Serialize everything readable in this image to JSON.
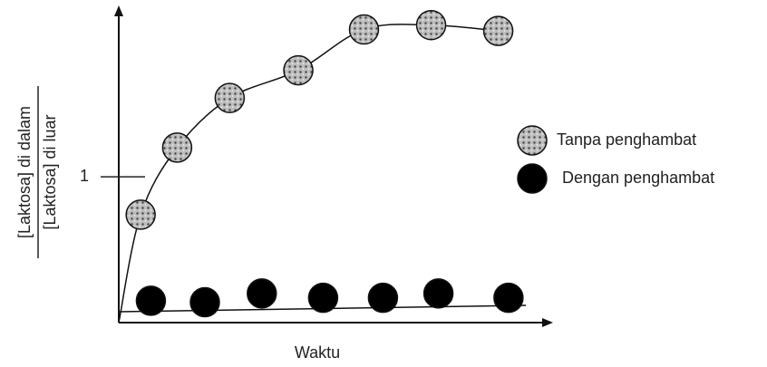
{
  "chart_data": {
    "type": "scatter",
    "y_label_numerator": "[Laktosa] di dalam",
    "y_label_denominator": "[Laktosa] di luar",
    "x_label": "Waktu",
    "xlim": [
      0,
      3
    ],
    "ylim": [
      0,
      2.15
    ],
    "yticks": [
      1
    ],
    "series": [
      {
        "name": "Tanpa penghambat",
        "color": "#9a9a9a",
        "x": [
          0.15,
          0.4,
          0.76,
          1.23,
          1.68,
          2.14,
          2.6
        ],
        "values": [
          0.74,
          1.2,
          1.54,
          1.73,
          2.01,
          2.04,
          2.0
        ]
      },
      {
        "name": "Dengan penghambat",
        "color": "#000000",
        "x": [
          0.22,
          0.59,
          0.98,
          1.4,
          1.81,
          2.19,
          2.67
        ],
        "values": [
          0.15,
          0.14,
          0.2,
          0.17,
          0.17,
          0.2,
          0.17
        ]
      }
    ]
  }
}
